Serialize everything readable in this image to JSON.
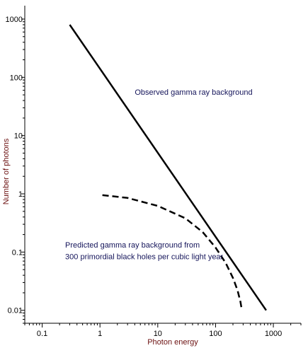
{
  "chart_data": {
    "type": "line",
    "xscale": "log",
    "yscale": "log",
    "xlabel": "Photon energy",
    "ylabel": "Number of photons",
    "xlim": [
      0.05,
      3000
    ],
    "ylim": [
      0.006,
      1700
    ],
    "x_ticks": [
      {
        "value": 0.1,
        "label": "0.1"
      },
      {
        "value": 1,
        "label": "1"
      },
      {
        "value": 10,
        "label": "10"
      },
      {
        "value": 100,
        "label": "100"
      },
      {
        "value": 1000,
        "label": "1000"
      }
    ],
    "y_ticks": [
      {
        "value": 0.01,
        "label": "0.01"
      },
      {
        "value": 0.1,
        "label": "0.1"
      },
      {
        "value": 1,
        "label": "1"
      },
      {
        "value": 10,
        "label": "10"
      },
      {
        "value": 100,
        "label": "100"
      },
      {
        "value": 1000,
        "label": "1000"
      }
    ],
    "grid": false,
    "series": [
      {
        "style": "solid",
        "color": "#000000",
        "x": [
          0.3,
          750
        ],
        "y": [
          800,
          0.01
        ]
      },
      {
        "style": "dashed",
        "color": "#000000",
        "x": [
          1.1,
          3,
          10,
          30,
          60,
          100,
          150,
          200,
          240,
          270,
          285
        ],
        "y": [
          0.95,
          0.85,
          0.62,
          0.38,
          0.22,
          0.12,
          0.065,
          0.036,
          0.022,
          0.014,
          0.01
        ]
      }
    ],
    "annotations": [
      {
        "text": "Observed gamma ray background",
        "x": 4,
        "y": 50,
        "anchor": "start"
      },
      {
        "text": "Predicted gamma ray background from",
        "x": 0.25,
        "y": 0.12,
        "anchor": "start"
      },
      {
        "text": "300 primordial black holes per cubic light year",
        "x": 0.25,
        "y": 0.075,
        "anchor": "start"
      }
    ]
  }
}
